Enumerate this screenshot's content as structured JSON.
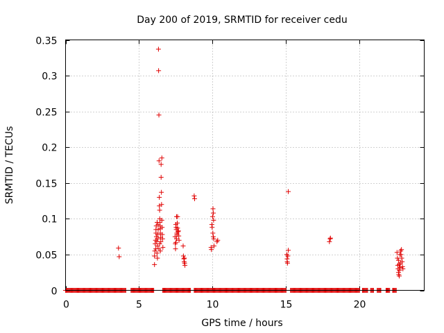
{
  "chart_data": {
    "type": "scatter",
    "title": "Day 200 of 2019, SRMTID for receiver cedu",
    "xlabel": "GPS time / hours",
    "ylabel": "SRMTID / TECUs",
    "xlim": [
      0,
      24.4
    ],
    "ylim": [
      0,
      0.35
    ],
    "grid": true,
    "x_ticks": [
      0,
      5,
      10,
      15,
      20
    ],
    "x_tick_labels": [
      "0",
      "5",
      "10",
      "15",
      "20"
    ],
    "y_ticks": [
      0,
      0.05,
      0.1,
      0.15,
      0.2,
      0.25,
      0.3,
      0.35
    ],
    "y_tick_labels": [
      "0",
      "0.05",
      "0.1",
      "0.15",
      "0.2",
      "0.25",
      "0.3",
      "0.35"
    ],
    "marker": "plus",
    "color": "#e00000",
    "baseline_segments": [
      [
        0.0,
        4.1
      ],
      [
        4.45,
        6.0
      ],
      [
        6.6,
        8.5
      ],
      [
        8.75,
        15.0
      ],
      [
        15.3,
        20.0
      ],
      [
        20.2,
        20.55
      ],
      [
        20.75,
        20.95
      ],
      [
        21.2,
        21.45
      ],
      [
        21.8,
        22.05
      ],
      [
        22.25,
        22.5
      ]
    ],
    "points": [
      [
        3.6,
        0.059
      ],
      [
        3.65,
        0.047
      ],
      [
        6.05,
        0.036
      ],
      [
        6.05,
        0.048
      ],
      [
        6.07,
        0.055
      ],
      [
        6.1,
        0.065
      ],
      [
        6.12,
        0.07
      ],
      [
        6.14,
        0.058
      ],
      [
        6.15,
        0.085
      ],
      [
        6.17,
        0.09
      ],
      [
        6.18,
        0.075
      ],
      [
        6.2,
        0.068
      ],
      [
        6.22,
        0.052
      ],
      [
        6.23,
        0.095
      ],
      [
        6.25,
        0.062
      ],
      [
        6.27,
        0.078
      ],
      [
        6.28,
        0.072
      ],
      [
        6.3,
        0.085
      ],
      [
        6.3,
        0.092
      ],
      [
        6.32,
        0.337
      ],
      [
        6.33,
        0.307
      ],
      [
        6.35,
        0.245
      ],
      [
        6.36,
        0.181
      ],
      [
        6.38,
        0.13
      ],
      [
        6.38,
        0.118
      ],
      [
        6.4,
        0.112
      ],
      [
        6.41,
        0.1
      ],
      [
        6.42,
        0.095
      ],
      [
        6.43,
        0.09
      ],
      [
        6.45,
        0.086
      ],
      [
        6.45,
        0.08
      ],
      [
        6.47,
        0.074
      ],
      [
        6.48,
        0.068
      ],
      [
        6.5,
        0.176
      ],
      [
        6.5,
        0.158
      ],
      [
        6.52,
        0.137
      ],
      [
        6.53,
        0.12
      ],
      [
        6.55,
        0.185
      ],
      [
        6.55,
        0.098
      ],
      [
        6.57,
        0.088
      ],
      [
        6.58,
        0.078
      ],
      [
        6.6,
        0.072
      ],
      [
        6.62,
        0.06
      ],
      [
        6.35,
        0.058
      ],
      [
        6.25,
        0.045
      ],
      [
        6.15,
        0.08
      ],
      [
        6.4,
        0.065
      ],
      [
        6.45,
        0.055
      ],
      [
        7.45,
        0.075
      ],
      [
        7.47,
        0.065
      ],
      [
        7.48,
        0.058
      ],
      [
        7.5,
        0.092
      ],
      [
        7.52,
        0.088
      ],
      [
        7.53,
        0.085
      ],
      [
        7.55,
        0.103
      ],
      [
        7.57,
        0.08
      ],
      [
        7.58,
        0.078
      ],
      [
        7.6,
        0.094
      ],
      [
        7.62,
        0.087
      ],
      [
        7.65,
        0.082
      ],
      [
        7.68,
        0.083
      ],
      [
        7.7,
        0.076
      ],
      [
        7.72,
        0.07
      ],
      [
        7.62,
        0.103
      ],
      [
        7.55,
        0.072
      ],
      [
        7.5,
        0.067
      ],
      [
        8.0,
        0.062
      ],
      [
        8.02,
        0.048
      ],
      [
        8.05,
        0.044
      ],
      [
        8.07,
        0.04
      ],
      [
        8.1,
        0.038
      ],
      [
        8.12,
        0.035
      ],
      [
        8.08,
        0.045
      ],
      [
        8.75,
        0.132
      ],
      [
        8.78,
        0.128
      ],
      [
        9.9,
        0.06
      ],
      [
        9.92,
        0.057
      ],
      [
        9.95,
        0.092
      ],
      [
        9.97,
        0.088
      ],
      [
        10.0,
        0.103
      ],
      [
        10.02,
        0.08
      ],
      [
        10.03,
        0.114
      ],
      [
        10.05,
        0.108
      ],
      [
        10.07,
        0.098
      ],
      [
        10.08,
        0.072
      ],
      [
        10.1,
        0.062
      ],
      [
        10.05,
        0.075
      ],
      [
        10.3,
        0.068
      ],
      [
        10.35,
        0.07
      ],
      [
        15.05,
        0.05
      ],
      [
        15.07,
        0.044
      ],
      [
        15.1,
        0.038
      ],
      [
        15.12,
        0.048
      ],
      [
        15.15,
        0.056
      ],
      [
        15.15,
        0.138
      ],
      [
        15.08,
        0.04
      ],
      [
        17.95,
        0.068
      ],
      [
        18.0,
        0.072
      ],
      [
        18.02,
        0.073
      ],
      [
        22.55,
        0.053
      ],
      [
        22.58,
        0.045
      ],
      [
        22.6,
        0.035
      ],
      [
        22.62,
        0.03
      ],
      [
        22.65,
        0.025
      ],
      [
        22.67,
        0.022
      ],
      [
        22.7,
        0.02
      ],
      [
        22.72,
        0.028
      ],
      [
        22.75,
        0.032
      ],
      [
        22.78,
        0.038
      ],
      [
        22.8,
        0.055
      ],
      [
        22.82,
        0.05
      ],
      [
        22.85,
        0.057
      ],
      [
        22.87,
        0.045
      ],
      [
        22.9,
        0.04
      ],
      [
        22.92,
        0.033
      ],
      [
        22.95,
        0.03
      ],
      [
        22.75,
        0.05
      ],
      [
        22.65,
        0.042
      ],
      [
        22.7,
        0.036
      ]
    ]
  }
}
